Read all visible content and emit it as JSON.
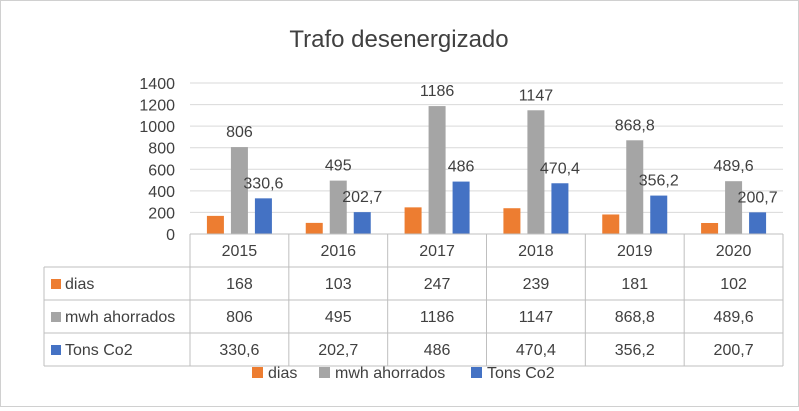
{
  "chart_data": {
    "type": "bar",
    "title": "Trafo desenergizado",
    "categories": [
      "2015",
      "2016",
      "2017",
      "2018",
      "2019",
      "2020"
    ],
    "ylim": [
      0,
      1400
    ],
    "yticks": [
      "0",
      "200",
      "400",
      "600",
      "800",
      "1000",
      "1200",
      "1400"
    ],
    "grid": true,
    "legend_position": "bottom",
    "data_table": true,
    "series": [
      {
        "name": "dias",
        "color": "#ED7D31",
        "values": [
          168,
          103,
          247,
          239,
          181,
          102
        ],
        "labels": [
          "168",
          "103",
          "247",
          "239",
          "181",
          "102"
        ],
        "show_data_labels": false
      },
      {
        "name": "mwh ahorrados",
        "color": "#A5A5A5",
        "values": [
          806,
          495,
          1186,
          1147,
          868.8,
          489.6
        ],
        "labels": [
          "806",
          "495",
          "1186",
          "1147",
          "868,8",
          "489,6"
        ],
        "show_data_labels": true
      },
      {
        "name": "Tons Co2",
        "color": "#4472C4",
        "values": [
          330.6,
          202.7,
          486,
          470.4,
          356.2,
          200.7
        ],
        "labels": [
          "330,6",
          "202,7",
          "486",
          "470,4",
          "356,2",
          "200,7"
        ],
        "show_data_labels": true
      }
    ]
  }
}
